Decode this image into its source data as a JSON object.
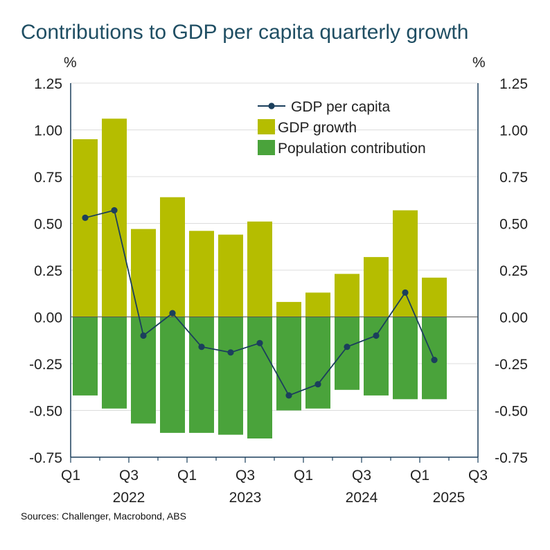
{
  "title": "Contributions to GDP per capita quarterly growth",
  "source": "Sources: Challenger, Macrobond, ABS",
  "colors": {
    "gdp_growth": "#b5bd00",
    "population": "#4aa33b",
    "gdp_per_capita": "#1b3f5c",
    "axis": "#1b3f5c",
    "grid": "#dcdcdc"
  },
  "chart_data": {
    "type": "bar",
    "title": "Contributions to GDP per capita quarterly growth",
    "y_unit_left": "%",
    "y_unit_right": "%",
    "ylim": [
      -0.75,
      1.25
    ],
    "yticks": [
      "1.25",
      "1.00",
      "0.75",
      "0.50",
      "0.25",
      "0.00",
      "-0.25",
      "-0.50",
      "-0.75"
    ],
    "ytick_values": [
      1.25,
      1.0,
      0.75,
      0.5,
      0.25,
      0.0,
      -0.25,
      -0.5,
      -0.75
    ],
    "quarters": [
      "Q1 2022",
      "Q2 2022",
      "Q3 2022",
      "Q4 2022",
      "Q1 2023",
      "Q2 2023",
      "Q3 2023",
      "Q4 2023",
      "Q1 2024",
      "Q2 2024",
      "Q3 2024",
      "Q4 2024",
      "Q1 2025"
    ],
    "x_tick_labels": [
      "Q1",
      "Q3",
      "Q1",
      "Q3",
      "Q1",
      "Q3",
      "Q1",
      "Q3"
    ],
    "year_labels": [
      "2022",
      "2023",
      "2024",
      "2025"
    ],
    "legend": [
      "GDP per capita",
      "GDP growth",
      "Population contribution"
    ],
    "series": [
      {
        "name": "GDP growth",
        "kind": "bar",
        "values": [
          0.95,
          1.06,
          0.47,
          0.64,
          0.46,
          0.44,
          0.51,
          0.08,
          0.13,
          0.23,
          0.32,
          0.57,
          0.21
        ]
      },
      {
        "name": "Population contribution",
        "kind": "bar",
        "values": [
          -0.42,
          -0.49,
          -0.57,
          -0.62,
          -0.62,
          -0.63,
          -0.65,
          -0.5,
          -0.49,
          -0.39,
          -0.42,
          -0.44,
          -0.44
        ]
      },
      {
        "name": "GDP per capita",
        "kind": "line",
        "values": [
          0.53,
          0.57,
          -0.1,
          0.02,
          -0.16,
          -0.19,
          -0.14,
          -0.42,
          -0.36,
          -0.16,
          -0.1,
          0.13,
          -0.23
        ]
      }
    ]
  }
}
